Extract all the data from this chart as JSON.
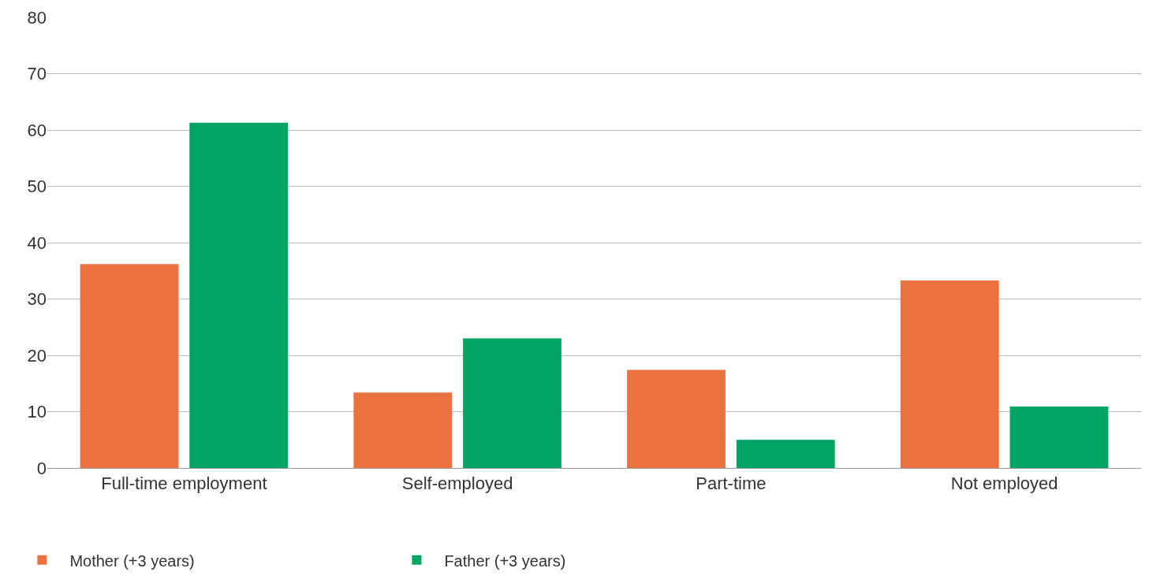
{
  "chart_data": {
    "type": "bar",
    "categories": [
      "Full-time employment",
      "Self-employed",
      "Part-time",
      "Not employed"
    ],
    "series": [
      {
        "name": "Mother (+3 years)",
        "color": "#ea7240",
        "values": [
          36.2,
          13.4,
          17.4,
          33.3
        ]
      },
      {
        "name": "Father (+3 years)",
        "color": "#00a464",
        "values": [
          61.3,
          23.0,
          5.0,
          10.9
        ]
      }
    ],
    "ylim": [
      0,
      80
    ],
    "yticks": [
      0,
      10,
      20,
      30,
      40,
      50,
      60,
      70,
      80
    ],
    "grid": "y",
    "legend": "bottom left"
  }
}
